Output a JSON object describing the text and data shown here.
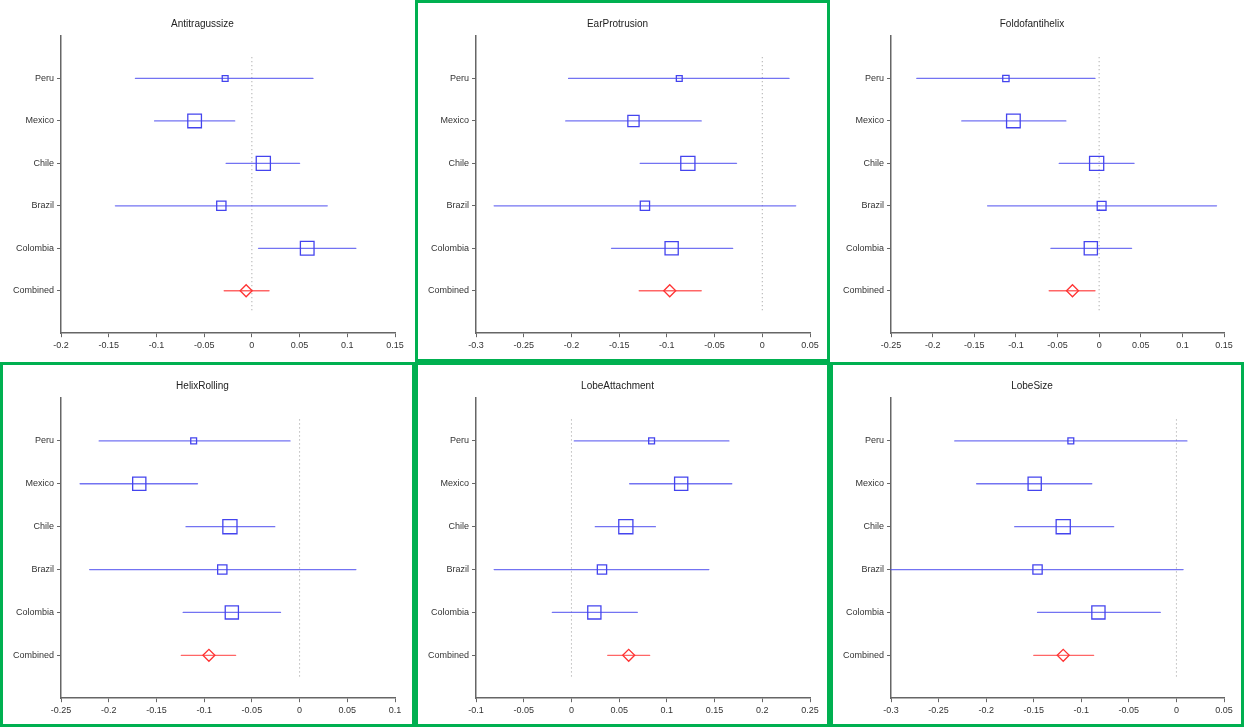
{
  "chart_data": [
    {
      "type": "scatter",
      "orientation": "horizontal",
      "title": "Antitragussize",
      "categories": [
        "Peru",
        "Mexico",
        "Chile",
        "Brazil",
        "Colombia",
        "Combined"
      ],
      "xlim": [
        -0.2,
        0.15
      ],
      "xticks": [
        -0.2,
        -0.15,
        -0.1,
        -0.05,
        0,
        0.05,
        0.1,
        0.15
      ],
      "ref_lines": [
        {
          "axis": "x",
          "value": 0,
          "color": "#999999",
          "line_style": "dotted"
        }
      ],
      "series": [
        {
          "color": "#4444ee",
          "marker": "square",
          "values": [
            -0.028,
            -0.06,
            0.012,
            -0.032,
            0.058,
            null
          ],
          "errors": [
            [
              -0.122,
              0.064
            ],
            [
              -0.102,
              -0.018
            ],
            [
              -0.027,
              0.05
            ],
            [
              -0.143,
              0.079
            ],
            [
              0.007,
              0.109
            ],
            null
          ],
          "sizes": [
            0.17,
            0.93,
            1,
            0.43,
            0.93,
            null
          ]
        },
        {
          "color": "#ff3333",
          "marker": "diamond",
          "values": [
            null,
            null,
            null,
            null,
            null,
            -0.006
          ],
          "errors": [
            null,
            null,
            null,
            null,
            null,
            [
              -0.029,
              0.018
            ]
          ]
        }
      ]
    },
    {
      "type": "scatter",
      "orientation": "horizontal",
      "title": "EarProtrusion",
      "categories": [
        "Peru",
        "Mexico",
        "Chile",
        "Brazil",
        "Colombia",
        "Combined"
      ],
      "xlim": [
        -0.3,
        0.05
      ],
      "xticks": [
        -0.3,
        -0.25,
        -0.2,
        -0.15,
        -0.1,
        -0.05,
        0,
        0.05
      ],
      "ref_lines": [
        {
          "axis": "x",
          "value": 0,
          "color": "#999999",
          "line_style": "dotted"
        }
      ],
      "series": [
        {
          "color": "#4444ee",
          "marker": "square",
          "values": [
            -0.087,
            -0.135,
            -0.078,
            -0.123,
            -0.095,
            null
          ],
          "errors": [
            [
              -0.203,
              0.028
            ],
            [
              -0.206,
              -0.064
            ],
            [
              -0.128,
              -0.027
            ],
            [
              -0.281,
              0.035
            ],
            [
              -0.158,
              -0.031
            ],
            null
          ],
          "sizes": [
            0.17,
            0.63,
            1,
            0.43,
            0.87,
            null
          ]
        },
        {
          "color": "#ff3333",
          "marker": "diamond",
          "values": [
            null,
            null,
            null,
            null,
            null,
            -0.097
          ],
          "errors": [
            null,
            null,
            null,
            null,
            null,
            [
              -0.129,
              -0.064
            ]
          ]
        }
      ]
    },
    {
      "type": "scatter",
      "orientation": "horizontal",
      "title": "Foldofantihelix",
      "categories": [
        "Peru",
        "Mexico",
        "Chile",
        "Brazil",
        "Colombia",
        "Combined"
      ],
      "xlim": [
        -0.25,
        0.15
      ],
      "xticks": [
        -0.25,
        -0.2,
        -0.15,
        -0.1,
        -0.05,
        0,
        0.05,
        0.1,
        0.15
      ],
      "ref_lines": [
        {
          "axis": "x",
          "value": 0,
          "color": "#999999",
          "line_style": "dotted"
        }
      ],
      "series": [
        {
          "color": "#4444ee",
          "marker": "square",
          "values": [
            -0.112,
            -0.103,
            -0.003,
            0.003,
            -0.01,
            null
          ],
          "errors": [
            [
              -0.219,
              -0.005
            ],
            [
              -0.165,
              -0.04
            ],
            [
              -0.048,
              0.042
            ],
            [
              -0.134,
              0.141
            ],
            [
              -0.058,
              0.039
            ],
            null
          ],
          "sizes": [
            0.2,
            0.93,
            1,
            0.39,
            0.87,
            null
          ]
        },
        {
          "color": "#ff3333",
          "marker": "diamond",
          "values": [
            null,
            null,
            null,
            null,
            null,
            -0.032
          ],
          "errors": [
            null,
            null,
            null,
            null,
            null,
            [
              -0.06,
              -0.005
            ]
          ]
        }
      ]
    },
    {
      "type": "scatter",
      "orientation": "horizontal",
      "title": "HelixRolling",
      "categories": [
        "Peru",
        "Mexico",
        "Chile",
        "Brazil",
        "Colombia",
        "Combined"
      ],
      "xlim": [
        -0.25,
        0.1
      ],
      "xticks": [
        -0.25,
        -0.2,
        -0.15,
        -0.1,
        -0.05,
        0,
        0.05,
        0.1
      ],
      "ref_lines": [
        {
          "axis": "x",
          "value": 0,
          "color": "#999999",
          "line_style": "dotted"
        }
      ],
      "series": [
        {
          "color": "#4444ee",
          "marker": "square",
          "values": [
            -0.111,
            -0.168,
            -0.073,
            -0.081,
            -0.071,
            null
          ],
          "errors": [
            [
              -0.21,
              -0.01
            ],
            [
              -0.23,
              -0.107
            ],
            [
              -0.119,
              -0.026
            ],
            [
              -0.22,
              0.059
            ],
            [
              -0.122,
              -0.02
            ],
            null
          ],
          "sizes": [
            0.17,
            0.87,
            1,
            0.43,
            0.87,
            null
          ]
        },
        {
          "color": "#ff3333",
          "marker": "diamond",
          "values": [
            null,
            null,
            null,
            null,
            null,
            -0.095
          ],
          "errors": [
            null,
            null,
            null,
            null,
            null,
            [
              -0.124,
              -0.067
            ]
          ]
        }
      ]
    },
    {
      "type": "scatter",
      "orientation": "horizontal",
      "title": "LobeAttachment",
      "categories": [
        "Peru",
        "Mexico",
        "Chile",
        "Brazil",
        "Colombia",
        "Combined"
      ],
      "xlim": [
        -0.1,
        0.25
      ],
      "xticks": [
        -0.1,
        -0.05,
        0,
        0.05,
        0.1,
        0.15,
        0.2,
        0.25
      ],
      "ref_lines": [
        {
          "axis": "x",
          "value": 0,
          "color": "#999999",
          "line_style": "dotted"
        }
      ],
      "series": [
        {
          "color": "#4444ee",
          "marker": "square",
          "values": [
            0.084,
            0.115,
            0.057,
            0.032,
            0.024,
            null
          ],
          "errors": [
            [
              0.003,
              0.165
            ],
            [
              0.061,
              0.168
            ],
            [
              0.025,
              0.088
            ],
            [
              -0.081,
              0.144
            ],
            [
              -0.02,
              0.069
            ],
            null
          ],
          "sizes": [
            0.17,
            0.87,
            1,
            0.43,
            0.87,
            null
          ]
        },
        {
          "color": "#ff3333",
          "marker": "diamond",
          "values": [
            null,
            null,
            null,
            null,
            null,
            0.06
          ],
          "errors": [
            null,
            null,
            null,
            null,
            null,
            [
              0.038,
              0.082
            ]
          ]
        }
      ]
    },
    {
      "type": "scatter",
      "orientation": "horizontal",
      "title": "LobeSize",
      "categories": [
        "Peru",
        "Mexico",
        "Chile",
        "Brazil",
        "Colombia",
        "Combined"
      ],
      "xlim": [
        -0.3,
        0.05
      ],
      "xticks": [
        -0.3,
        -0.25,
        -0.2,
        -0.15,
        -0.1,
        -0.05,
        0,
        0.05
      ],
      "ref_lines": [
        {
          "axis": "x",
          "value": 0,
          "color": "#999999",
          "line_style": "dotted"
        }
      ],
      "series": [
        {
          "color": "#4444ee",
          "marker": "square",
          "values": [
            -0.111,
            -0.149,
            -0.119,
            -0.146,
            -0.082,
            null
          ],
          "errors": [
            [
              -0.233,
              0.011
            ],
            [
              -0.21,
              -0.089
            ],
            [
              -0.17,
              -0.066
            ],
            [
              -0.3,
              0.007
            ],
            [
              -0.146,
              -0.017
            ],
            null
          ],
          "sizes": [
            0.17,
            0.87,
            1,
            0.43,
            0.87,
            null
          ]
        },
        {
          "color": "#ff3333",
          "marker": "diamond",
          "values": [
            null,
            null,
            null,
            null,
            null,
            -0.119
          ],
          "errors": [
            null,
            null,
            null,
            null,
            null,
            [
              -0.15,
              -0.087
            ]
          ]
        }
      ]
    }
  ]
}
